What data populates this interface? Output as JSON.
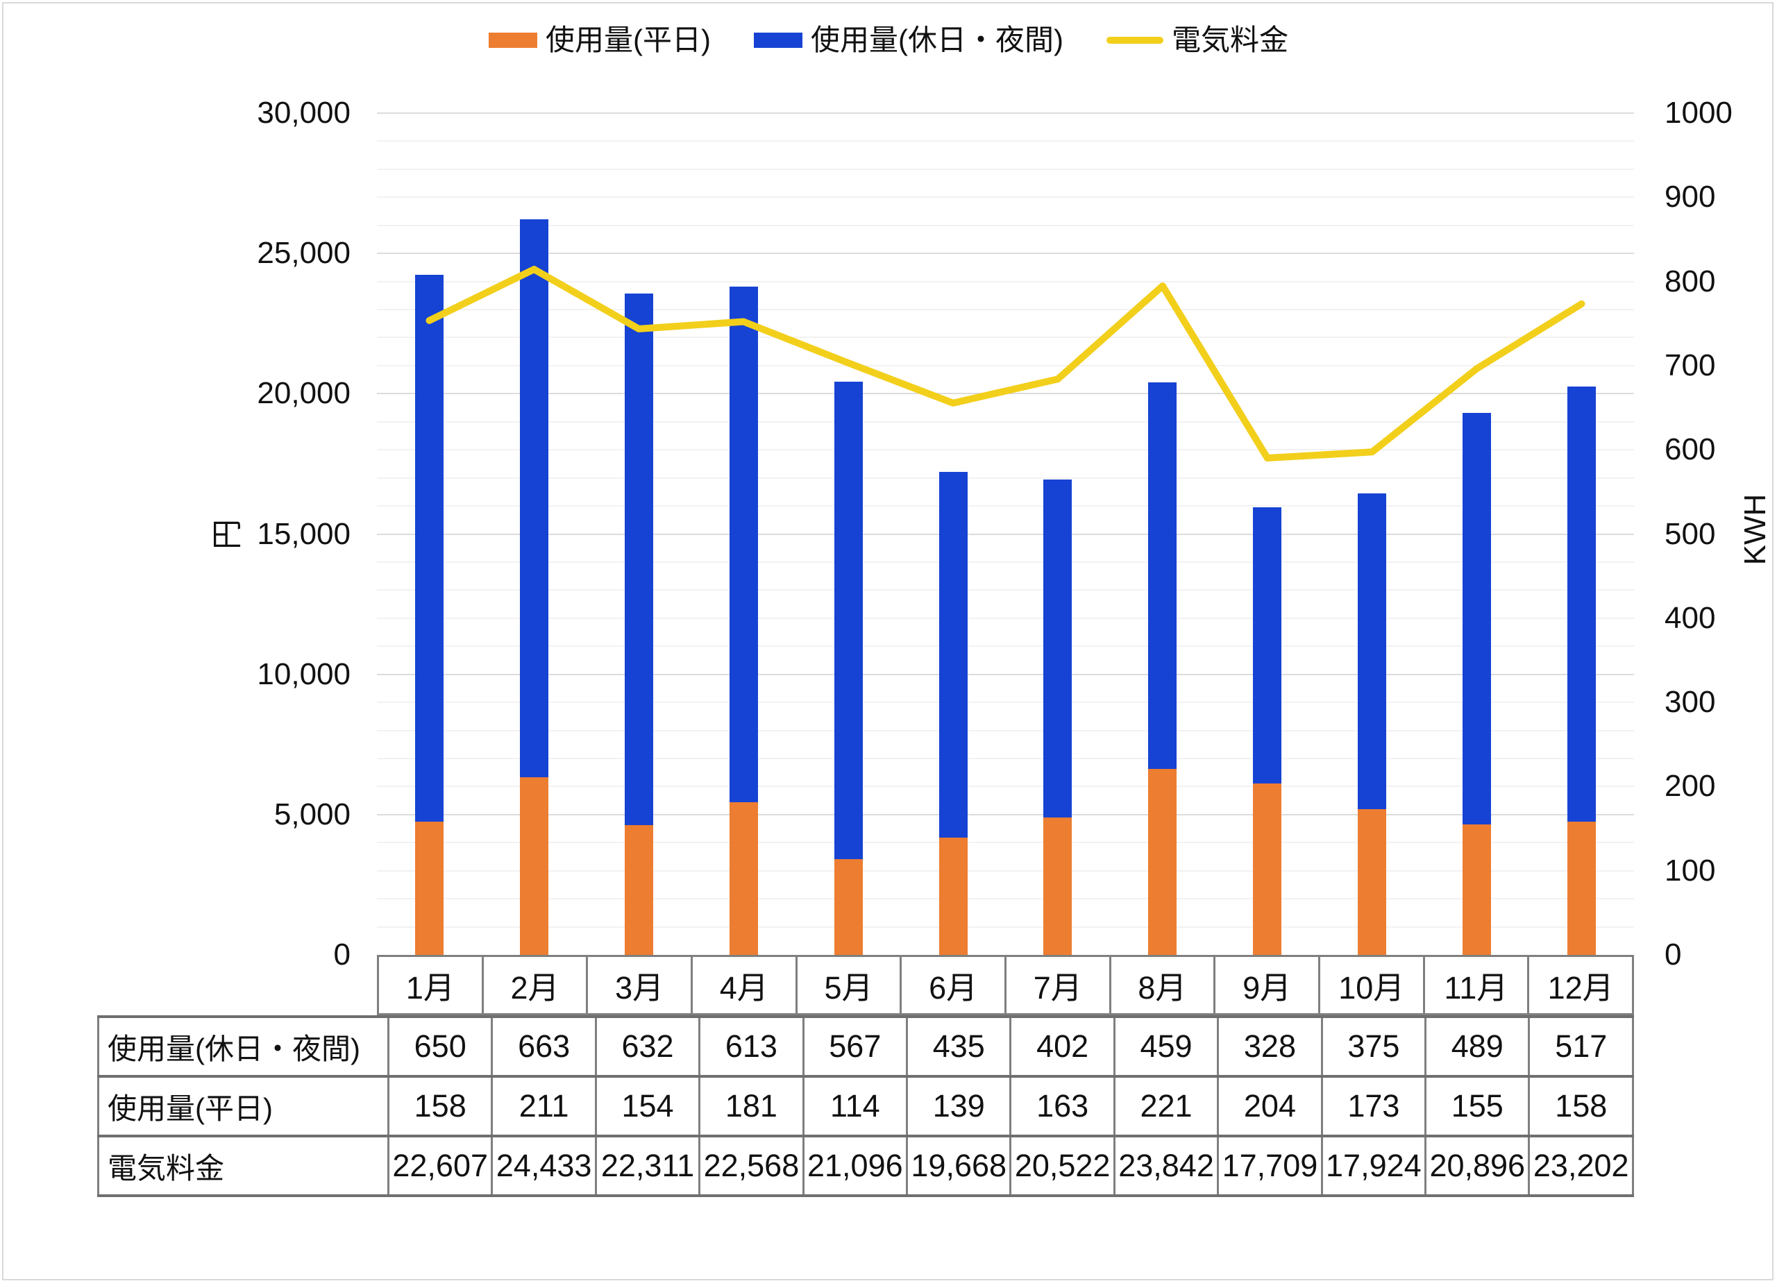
{
  "legend": [
    {
      "label": "使用量(平日)",
      "color": "#ED7D31",
      "marker": "bar"
    },
    {
      "label": "使用量(休日・夜間)",
      "color": "#1643D3",
      "marker": "bar"
    },
    {
      "label": "電気料金",
      "color": "#F2CF1B",
      "marker": "line"
    }
  ],
  "chart_data": {
    "type": "combo",
    "categories": [
      "1月",
      "2月",
      "3月",
      "4月",
      "5月",
      "6月",
      "7月",
      "8月",
      "9月",
      "10月",
      "11月",
      "12月"
    ],
    "series": [
      {
        "name": "使用量(平日)",
        "type": "bar",
        "stack": "usage",
        "axis": "right",
        "color": "#ED7D31",
        "values": [
          158,
          211,
          154,
          181,
          114,
          139,
          163,
          221,
          204,
          173,
          155,
          158
        ]
      },
      {
        "name": "使用量(休日・夜間)",
        "type": "bar",
        "stack": "usage",
        "axis": "right",
        "color": "#1643D3",
        "values": [
          650,
          663,
          632,
          613,
          567,
          435,
          402,
          459,
          328,
          375,
          489,
          517
        ]
      },
      {
        "name": "電気料金",
        "type": "line",
        "axis": "left",
        "color": "#F2CF1B",
        "values": [
          22607,
          24433,
          22311,
          22568,
          21096,
          19668,
          20522,
          23842,
          17709,
          17924,
          20896,
          23202
        ]
      }
    ],
    "left_axis": {
      "title": "円",
      "min": 0,
      "max": 30000,
      "major": 5000,
      "minor": 1000,
      "ticks": [
        "30,000",
        "25,000",
        "20,000",
        "15,000",
        "10,000",
        "5,000",
        "0"
      ]
    },
    "right_axis": {
      "title": "KWH",
      "min": 0,
      "max": 1000,
      "major": 100,
      "ticks": [
        "1000",
        "900",
        "800",
        "700",
        "600",
        "500",
        "400",
        "300",
        "200",
        "100",
        "0"
      ]
    },
    "grid": "horizontal-minor-and-major",
    "legend_position": "top"
  },
  "table": {
    "col_headers": [
      "1月",
      "2月",
      "3月",
      "4月",
      "5月",
      "6月",
      "7月",
      "8月",
      "9月",
      "10月",
      "11月",
      "12月"
    ],
    "rows": [
      {
        "label": "使用量(休日・夜間)",
        "values": [
          "650",
          "663",
          "632",
          "613",
          "567",
          "435",
          "402",
          "459",
          "328",
          "375",
          "489",
          "517"
        ]
      },
      {
        "label": "使用量(平日)",
        "values": [
          "158",
          "211",
          "154",
          "181",
          "114",
          "139",
          "163",
          "221",
          "204",
          "173",
          "155",
          "158"
        ]
      },
      {
        "label": "電気料金",
        "values": [
          "22,607",
          "24,433",
          "22,311",
          "22,568",
          "21,096",
          "19,668",
          "20,522",
          "23,842",
          "17,709",
          "17,924",
          "20,896",
          "23,202"
        ]
      }
    ]
  }
}
